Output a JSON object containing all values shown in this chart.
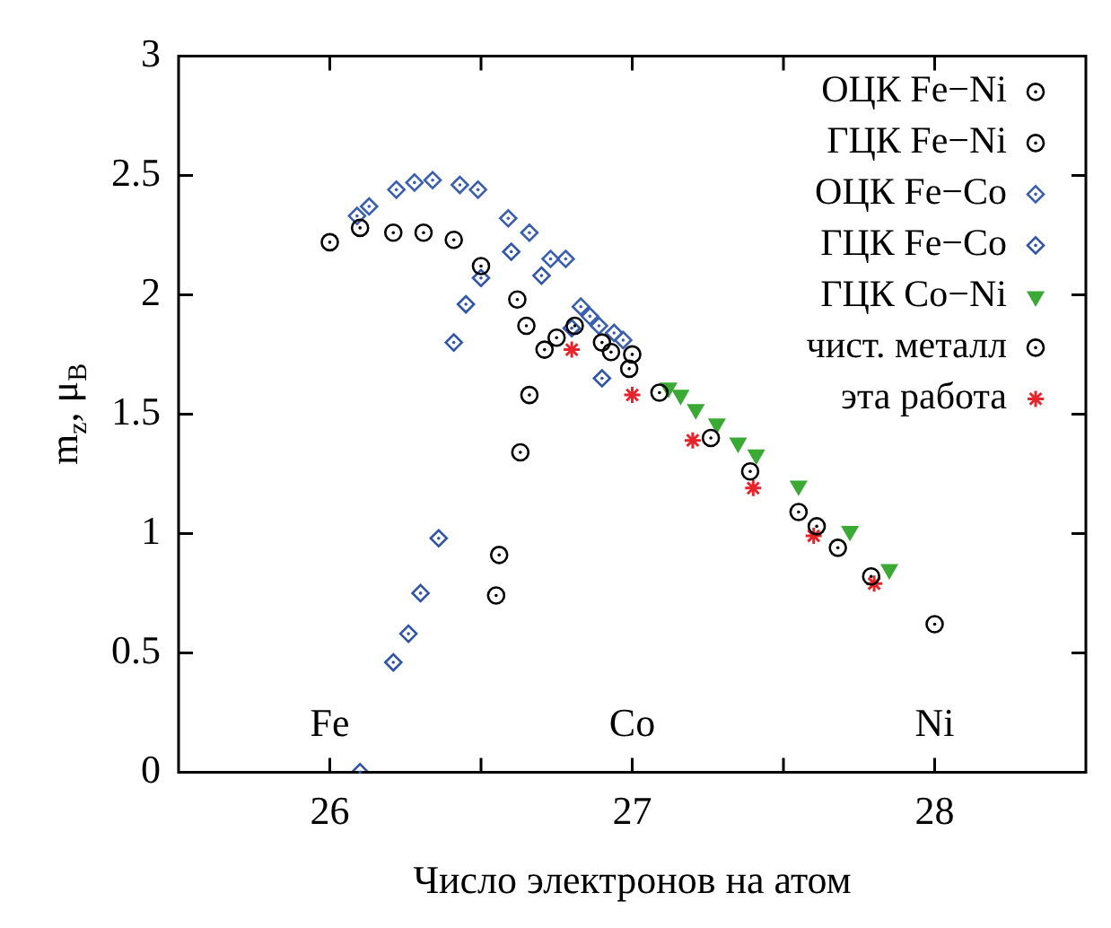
{
  "chart_data": {
    "type": "scatter",
    "xlabel": "Число электронов на атом",
    "ylabel": "m$_{z}$, μ$_{B}$",
    "xlim": [
      25.5,
      28.5
    ],
    "xticks": [
      26,
      {
        "value": 26.5,
        "label": null
      },
      27,
      {
        "value": 27.5,
        "label": null
      },
      28
    ],
    "ylim": [
      0,
      3
    ],
    "yticks": [
      0,
      0.5,
      1,
      1.5,
      2,
      2.5,
      3
    ],
    "grid": false,
    "legend": "top right",
    "annotations": [
      "Fe",
      "Co",
      "Ni"
    ],
    "series": [
      {
        "name": "ОЦК Fe−Ni",
        "color": "#000000",
        "marker": "circle",
        "x": [
          26.1,
          26.21,
          26.31,
          26.41,
          26.5,
          26.62,
          26.65
        ],
        "values": [
          2.28,
          2.26,
          2.26,
          2.23,
          2.12,
          1.98,
          1.87
        ]
      },
      {
        "name": "ГЦК Fe−Ni",
        "color": "#000000",
        "marker": "circle",
        "x": [
          26.55,
          26.56,
          26.63,
          26.66,
          26.71,
          26.75,
          26.81,
          26.9,
          26.93,
          26.99,
          27.09,
          27.26,
          27.39,
          27.55,
          27.61,
          27.68,
          27.79
        ],
        "values": [
          0.74,
          0.91,
          1.34,
          1.58,
          1.77,
          1.82,
          1.87,
          1.8,
          1.76,
          1.69,
          1.59,
          1.4,
          1.26,
          1.09,
          1.03,
          0.94,
          0.82
        ]
      },
      {
        "name": "ОЦК Fe−Co",
        "color": "#3a5fb0",
        "marker": "diamond",
        "x": [
          26.09,
          26.13,
          26.22,
          26.28,
          26.34,
          26.43,
          26.49,
          26.59,
          26.66,
          26.73,
          26.78,
          26.83,
          26.86,
          26.89,
          26.94,
          26.97
        ],
        "values": [
          2.33,
          2.37,
          2.44,
          2.47,
          2.48,
          2.46,
          2.44,
          2.32,
          2.26,
          2.15,
          2.15,
          1.95,
          1.91,
          1.87,
          1.84,
          1.81
        ]
      },
      {
        "name": "ГЦК Fe−Co",
        "color": "#2f55a8",
        "marker": "diamond",
        "x": [
          26.1,
          26.21,
          26.26,
          26.3,
          26.36,
          26.41,
          26.45,
          26.5,
          26.6,
          26.7,
          26.8,
          26.9
        ],
        "values": [
          0.0,
          0.46,
          0.58,
          0.75,
          0.98,
          1.8,
          1.96,
          2.07,
          2.18,
          2.08,
          1.86,
          1.65
        ]
      },
      {
        "name": "ГЦК Co−Ni",
        "color": "#3aaa35",
        "marker": "triangle",
        "x": [
          27.12,
          27.16,
          27.21,
          27.28,
          27.35,
          27.41,
          27.55,
          27.72,
          27.85
        ],
        "values": [
          1.61,
          1.58,
          1.52,
          1.46,
          1.38,
          1.33,
          1.2,
          1.01,
          0.85
        ]
      },
      {
        "name": "чист. металл",
        "color": "#000000",
        "marker": "circle",
        "x": [
          26.0,
          27.0,
          28.0
        ],
        "values": [
          2.22,
          1.75,
          0.62
        ]
      },
      {
        "name": "эта работа",
        "color": "#e8242a",
        "marker": "cross",
        "x": [
          26.8,
          27.0,
          27.2,
          27.4,
          27.6,
          27.8
        ],
        "values": [
          1.77,
          1.58,
          1.39,
          1.19,
          0.99,
          0.79
        ]
      }
    ]
  }
}
